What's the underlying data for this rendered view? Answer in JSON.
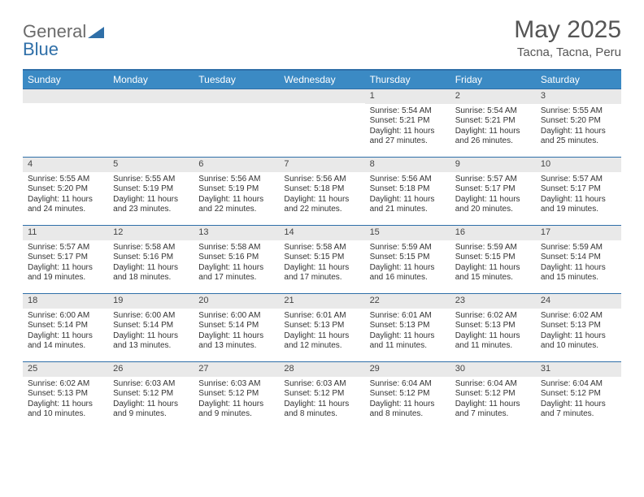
{
  "brand": {
    "part1": "General",
    "part2": "Blue"
  },
  "title": {
    "month": "May 2025",
    "location": "Tacna, Tacna, Peru"
  },
  "weekdays": [
    "Sunday",
    "Monday",
    "Tuesday",
    "Wednesday",
    "Thursday",
    "Friday",
    "Saturday"
  ],
  "colors": {
    "header_bar": "#3b8ac4",
    "accent": "#2f6fa8",
    "daynum_bg": "#e9e9e9",
    "text": "#333333",
    "title_text": "#555555"
  },
  "typography": {
    "title_fontsize_pt": 22,
    "location_fontsize_pt": 11,
    "weekday_fontsize_pt": 9,
    "cell_fontsize_pt": 7.5
  },
  "layout": {
    "columns": 7,
    "rows": 5,
    "first_day_column_index": 4
  },
  "days": [
    {
      "n": "1",
      "sr": "5:54 AM",
      "ss": "5:21 PM",
      "dl": "11 hours and 27 minutes."
    },
    {
      "n": "2",
      "sr": "5:54 AM",
      "ss": "5:21 PM",
      "dl": "11 hours and 26 minutes."
    },
    {
      "n": "3",
      "sr": "5:55 AM",
      "ss": "5:20 PM",
      "dl": "11 hours and 25 minutes."
    },
    {
      "n": "4",
      "sr": "5:55 AM",
      "ss": "5:20 PM",
      "dl": "11 hours and 24 minutes."
    },
    {
      "n": "5",
      "sr": "5:55 AM",
      "ss": "5:19 PM",
      "dl": "11 hours and 23 minutes."
    },
    {
      "n": "6",
      "sr": "5:56 AM",
      "ss": "5:19 PM",
      "dl": "11 hours and 22 minutes."
    },
    {
      "n": "7",
      "sr": "5:56 AM",
      "ss": "5:18 PM",
      "dl": "11 hours and 22 minutes."
    },
    {
      "n": "8",
      "sr": "5:56 AM",
      "ss": "5:18 PM",
      "dl": "11 hours and 21 minutes."
    },
    {
      "n": "9",
      "sr": "5:57 AM",
      "ss": "5:17 PM",
      "dl": "11 hours and 20 minutes."
    },
    {
      "n": "10",
      "sr": "5:57 AM",
      "ss": "5:17 PM",
      "dl": "11 hours and 19 minutes."
    },
    {
      "n": "11",
      "sr": "5:57 AM",
      "ss": "5:17 PM",
      "dl": "11 hours and 19 minutes."
    },
    {
      "n": "12",
      "sr": "5:58 AM",
      "ss": "5:16 PM",
      "dl": "11 hours and 18 minutes."
    },
    {
      "n": "13",
      "sr": "5:58 AM",
      "ss": "5:16 PM",
      "dl": "11 hours and 17 minutes."
    },
    {
      "n": "14",
      "sr": "5:58 AM",
      "ss": "5:15 PM",
      "dl": "11 hours and 17 minutes."
    },
    {
      "n": "15",
      "sr": "5:59 AM",
      "ss": "5:15 PM",
      "dl": "11 hours and 16 minutes."
    },
    {
      "n": "16",
      "sr": "5:59 AM",
      "ss": "5:15 PM",
      "dl": "11 hours and 15 minutes."
    },
    {
      "n": "17",
      "sr": "5:59 AM",
      "ss": "5:14 PM",
      "dl": "11 hours and 15 minutes."
    },
    {
      "n": "18",
      "sr": "6:00 AM",
      "ss": "5:14 PM",
      "dl": "11 hours and 14 minutes."
    },
    {
      "n": "19",
      "sr": "6:00 AM",
      "ss": "5:14 PM",
      "dl": "11 hours and 13 minutes."
    },
    {
      "n": "20",
      "sr": "6:00 AM",
      "ss": "5:14 PM",
      "dl": "11 hours and 13 minutes."
    },
    {
      "n": "21",
      "sr": "6:01 AM",
      "ss": "5:13 PM",
      "dl": "11 hours and 12 minutes."
    },
    {
      "n": "22",
      "sr": "6:01 AM",
      "ss": "5:13 PM",
      "dl": "11 hours and 11 minutes."
    },
    {
      "n": "23",
      "sr": "6:02 AM",
      "ss": "5:13 PM",
      "dl": "11 hours and 11 minutes."
    },
    {
      "n": "24",
      "sr": "6:02 AM",
      "ss": "5:13 PM",
      "dl": "11 hours and 10 minutes."
    },
    {
      "n": "25",
      "sr": "6:02 AM",
      "ss": "5:13 PM",
      "dl": "11 hours and 10 minutes."
    },
    {
      "n": "26",
      "sr": "6:03 AM",
      "ss": "5:12 PM",
      "dl": "11 hours and 9 minutes."
    },
    {
      "n": "27",
      "sr": "6:03 AM",
      "ss": "5:12 PM",
      "dl": "11 hours and 9 minutes."
    },
    {
      "n": "28",
      "sr": "6:03 AM",
      "ss": "5:12 PM",
      "dl": "11 hours and 8 minutes."
    },
    {
      "n": "29",
      "sr": "6:04 AM",
      "ss": "5:12 PM",
      "dl": "11 hours and 8 minutes."
    },
    {
      "n": "30",
      "sr": "6:04 AM",
      "ss": "5:12 PM",
      "dl": "11 hours and 7 minutes."
    },
    {
      "n": "31",
      "sr": "6:04 AM",
      "ss": "5:12 PM",
      "dl": "11 hours and 7 minutes."
    }
  ],
  "labels": {
    "sunrise": "Sunrise:",
    "sunset": "Sunset:",
    "daylight": "Daylight:"
  }
}
